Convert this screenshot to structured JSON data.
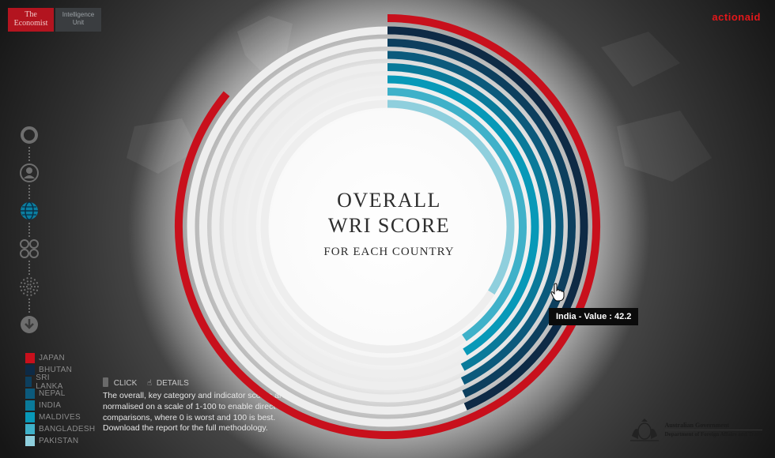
{
  "brand": {
    "economist_line1": "The",
    "economist_line2": "Economist",
    "eiu_line1": "Intelligence",
    "eiu_line2": "Unit",
    "actionaid": "actionaid"
  },
  "nav": {
    "items": [
      {
        "name": "overall-icon"
      },
      {
        "name": "person-icon"
      },
      {
        "name": "globe-icon"
      },
      {
        "name": "four-circles-icon"
      },
      {
        "name": "dots-circle-icon"
      },
      {
        "name": "download-icon"
      }
    ]
  },
  "legend": {
    "items": [
      {
        "label": "JAPAN",
        "color": "#c8101c"
      },
      {
        "label": "BHUTAN",
        "color": "#0e2a45"
      },
      {
        "label": "SRI LANKA",
        "color": "#0d3f5e"
      },
      {
        "label": "NEPAL",
        "color": "#0c5a7c"
      },
      {
        "label": "INDIA",
        "color": "#0a7a9a"
      },
      {
        "label": "MALDIVES",
        "color": "#0899b8"
      },
      {
        "label": "BANGLADESH",
        "color": "#3fb1c9"
      },
      {
        "label": "PAKISTAN",
        "color": "#8fcfdd"
      }
    ]
  },
  "hint": {
    "click": "CLICK",
    "details": "DETAILS"
  },
  "note": "The overall, key category and indicator scores are normalised on a scale of 1-100 to enable direct comparisons, where 0 is worst and 100 is best. Download the report for the full methodology.",
  "title": {
    "line1": "OVERALL",
    "line2": "WRI SCORE",
    "line3": "FOR EACH COUNTRY"
  },
  "tooltip": "India - Value : 42.2",
  "gov": {
    "line1": "Australian Government",
    "line2": "Department of Foreign Affairs and Trade"
  },
  "chart_data": {
    "type": "radial-bar",
    "title": "OVERALL WRI SCORE FOR EACH COUNTRY",
    "value_range": [
      0,
      100
    ],
    "series": [
      {
        "name": "JAPAN",
        "value": 86,
        "color": "#c8101c"
      },
      {
        "name": "BHUTAN",
        "value": 43.5,
        "color": "#0e2a45"
      },
      {
        "name": "SRI LANKA",
        "value": 43.2,
        "color": "#0d3f5e"
      },
      {
        "name": "NEPAL",
        "value": 42.8,
        "color": "#0c5a7c"
      },
      {
        "name": "INDIA",
        "value": 42.2,
        "color": "#0a7a9a"
      },
      {
        "name": "MALDIVES",
        "value": 41.2,
        "color": "#0899b8"
      },
      {
        "name": "BANGLADESH",
        "value": 40.4,
        "color": "#3fb1c9"
      },
      {
        "name": "PAKISTAN",
        "value": 34,
        "color": "#8fcfdd"
      }
    ],
    "legend_position": "bottom-left"
  }
}
